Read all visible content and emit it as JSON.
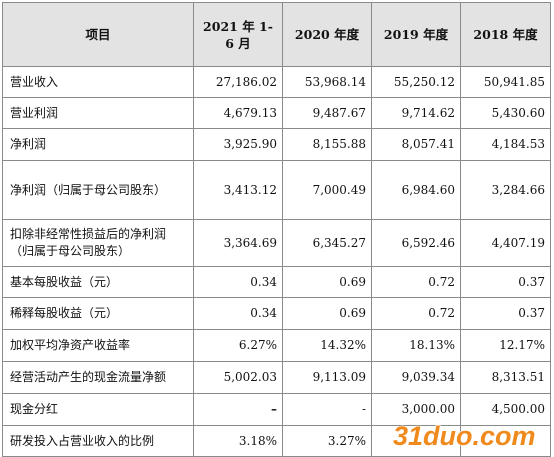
{
  "table": {
    "headers": [
      "项目",
      "2021 年 1-6 月",
      "2020 年度",
      "2019 年度",
      "2018 年度"
    ],
    "rows": [
      {
        "label": "营业收入",
        "values": [
          "27,186.02",
          "53,968.14",
          "55,250.12",
          "50,941.85"
        ]
      },
      {
        "label": "营业利润",
        "values": [
          "4,679.13",
          "9,487.67",
          "9,714.62",
          "5,430.60"
        ]
      },
      {
        "label": "净利润",
        "values": [
          "3,925.90",
          "8,155.88",
          "8,057.41",
          "4,184.53"
        ]
      },
      {
        "label": "净利润（归属于母公司股东）",
        "values": [
          "3,413.12",
          "7,000.49",
          "6,984.60",
          "3,284.66"
        ]
      },
      {
        "label": "扣除非经常性损益后的净利润（归属于母公司股东）",
        "values": [
          "3,364.69",
          "6,345.27",
          "6,592.46",
          "4,407.19"
        ]
      },
      {
        "label": "基本每股收益（元）",
        "values": [
          "0.34",
          "0.69",
          "0.72",
          "0.37"
        ]
      },
      {
        "label": "稀释每股收益（元）",
        "values": [
          "0.34",
          "0.69",
          "0.72",
          "0.37"
        ]
      },
      {
        "label": "加权平均净资产收益率",
        "values": [
          "6.27%",
          "14.32%",
          "18.13%",
          "12.17%"
        ]
      },
      {
        "label": "经营活动产生的现金流量净额",
        "values": [
          "5,002.03",
          "9,113.09",
          "9,039.34",
          "8,313.51"
        ]
      },
      {
        "label": "现金分红",
        "values": [
          "–",
          "-",
          "3,000.00",
          "4,500.00"
        ]
      },
      {
        "label": "研发投入占营业收入的比例",
        "values": [
          "3.18%",
          "3.27%",
          "",
          ""
        ]
      }
    ]
  },
  "watermark": {
    "text": "31duo.com",
    "color": "#f08a1c"
  }
}
